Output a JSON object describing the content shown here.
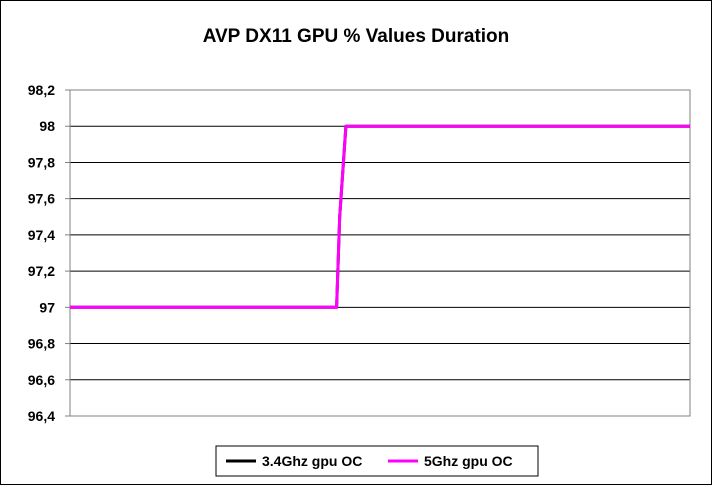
{
  "chart_data": {
    "type": "line",
    "title": "AVP DX11 GPU % Values Duration",
    "xlabel": "",
    "ylabel": "",
    "ylim": [
      96.4,
      98.2
    ],
    "yticks": [
      {
        "value": 96.4,
        "label": "96,4"
      },
      {
        "value": 96.6,
        "label": "96,6"
      },
      {
        "value": 96.8,
        "label": "96,8"
      },
      {
        "value": 97.0,
        "label": "97"
      },
      {
        "value": 97.2,
        "label": "97,2"
      },
      {
        "value": 97.4,
        "label": "97,4"
      },
      {
        "value": 97.6,
        "label": "97,6"
      },
      {
        "value": 97.8,
        "label": "97,8"
      },
      {
        "value": 98.0,
        "label": "98"
      },
      {
        "value": 98.2,
        "label": "98,2"
      }
    ],
    "grid": true,
    "legend": "bottom",
    "series": [
      {
        "name": "3.4Ghz gpu OC",
        "color": "#000000",
        "x": [
          0,
          43,
          43.5,
          44.5,
          100
        ],
        "y": [
          97,
          97,
          97.5,
          98,
          98
        ]
      },
      {
        "name": "5Ghz gpu OC",
        "color": "#ff00ff",
        "x": [
          0,
          43,
          43.5,
          44.5,
          100
        ],
        "y": [
          97,
          97,
          97.5,
          98,
          98
        ]
      }
    ]
  }
}
